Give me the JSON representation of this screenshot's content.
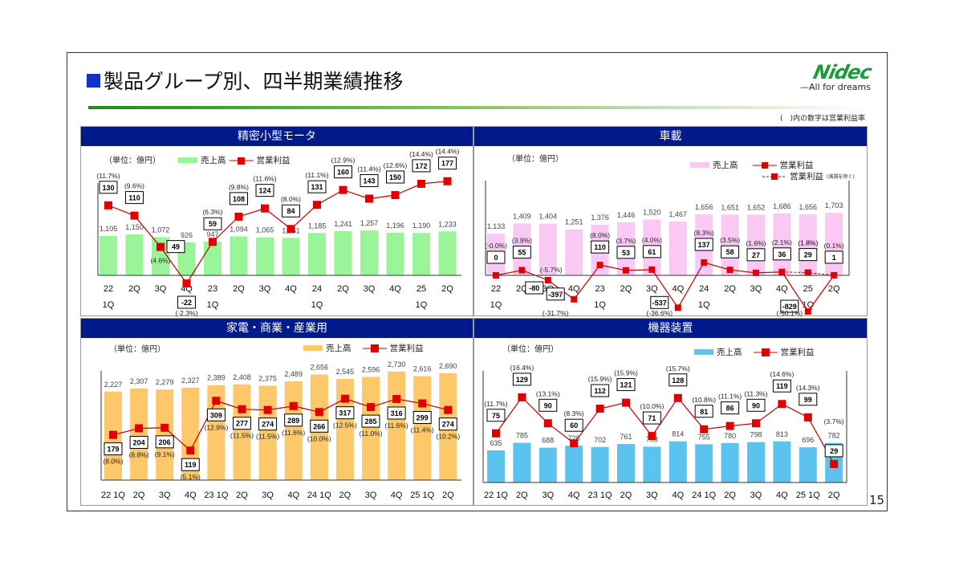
{
  "header": {
    "title": "製品グループ別、四半期業績推移",
    "logo_text": "Nidec",
    "logo_tagline": "All for dreams",
    "note": "(　)内の数字は営業利益率",
    "page_number": "15"
  },
  "colors": {
    "header_bg": "#001a8c",
    "profit": "#e00000",
    "precision_bar": "#99f598",
    "auto_bar": "#f9c8f3",
    "appliance_bar": "#fdc86a",
    "machinery_bar": "#5cc3ee"
  },
  "chart_data": [
    {
      "type": "bar+line",
      "title": "精密小型モータ",
      "unit": "（単位：億円）",
      "legend": [
        "売上高",
        "営業利益"
      ],
      "categories": [
        [
          "22",
          "1Q"
        ],
        [
          "2Q",
          ""
        ],
        [
          "3Q",
          ""
        ],
        [
          "4Q",
          ""
        ],
        [
          "23",
          "1Q"
        ],
        [
          "2Q",
          ""
        ],
        [
          "3Q",
          ""
        ],
        [
          "4Q",
          ""
        ],
        [
          "24",
          "1Q"
        ],
        [
          "2Q",
          ""
        ],
        [
          "3Q",
          ""
        ],
        [
          "4Q",
          ""
        ],
        [
          "25",
          "1Q"
        ],
        [
          "2Q",
          ""
        ]
      ],
      "sales": [
        1105,
        1150,
        1072,
        926,
        947,
        1094,
        1065,
        1051,
        1185,
        1241,
        1257,
        1196,
        1190,
        1233
      ],
      "sales_labels": [
        "1,105",
        "1,150",
        "1,072",
        "926",
        "947",
        "1,094",
        "1,065",
        "1,051",
        "1,185",
        "1,241",
        "1,257",
        "1,196",
        "1,190",
        "1,233"
      ],
      "profit": [
        130,
        110,
        49,
        -22,
        59,
        108,
        124,
        84,
        131,
        160,
        143,
        150,
        172,
        177
      ],
      "margin": [
        "(11.7%)",
        "(9.6%)",
        "(4.6%)",
        "(-2.3%)",
        "(6.3%)",
        "(9.8%)",
        "(11.6%)",
        "(8.0%)",
        "(11.1%)",
        "(12.9%)",
        "(11.4%)",
        "(12.6%)",
        "(14.4%)",
        "(14.4%)"
      ]
    },
    {
      "type": "bar+line",
      "title": "車載",
      "unit": "（単位：億円）",
      "legend": [
        "売上高",
        "営業利益",
        "営業利益",
        "(減損を除く)"
      ],
      "categories": [
        [
          "22",
          "1Q"
        ],
        [
          "2Q",
          ""
        ],
        [
          "3Q",
          ""
        ],
        [
          "4Q",
          ""
        ],
        [
          "23",
          "1Q"
        ],
        [
          "2Q",
          ""
        ],
        [
          "3Q",
          ""
        ],
        [
          "4Q",
          ""
        ],
        [
          "24",
          "1Q"
        ],
        [
          "2Q",
          ""
        ],
        [
          "3Q",
          ""
        ],
        [
          "4Q",
          ""
        ],
        [
          "25",
          "1Q"
        ],
        [
          "2Q",
          ""
        ]
      ],
      "sales": [
        1133,
        1409,
        1404,
        1251,
        1376,
        1446,
        1520,
        1467,
        1656,
        1651,
        1652,
        1686,
        1656,
        1703
      ],
      "sales_labels": [
        "1,133",
        "1,409",
        "1,404",
        "1,251",
        "1,376",
        "1,446",
        "1,520",
        "1,467",
        "1,656",
        "1,651",
        "1,652",
        "1,686",
        "1,656",
        "1,703"
      ],
      "profit": [
        0,
        55,
        -80,
        -397,
        110,
        53,
        61,
        -537,
        137,
        58,
        27,
        36,
        -829,
        1
      ],
      "margin": [
        "(-0.0%)",
        "(3.9%)",
        "(-5.7%)",
        "(-31.7%)",
        "(8.0%)",
        "(3.7%)",
        "(4.0%)",
        "(-36.6%)",
        "(8.3%)",
        "(3.5%)",
        "(1.6%)",
        "(2.1%)",
        "(-50.1%)",
        "(0.1%)"
      ],
      "profit_excl": {
        "indices": [
          11,
          12,
          13
        ],
        "values": [
          36,
          29,
          1
        ],
        "margin_25_1Q": "(1.8%)"
      }
    },
    {
      "type": "bar+line",
      "title": "家電・商業・産業用",
      "unit": "（単位：億円）",
      "legend": [
        "売上高",
        "営業利益"
      ],
      "categories": [
        [
          "22 1Q"
        ],
        [
          "2Q"
        ],
        [
          "3Q"
        ],
        [
          "4Q"
        ],
        [
          "23 1Q"
        ],
        [
          "2Q"
        ],
        [
          "3Q"
        ],
        [
          "4Q"
        ],
        [
          "24 1Q"
        ],
        [
          "2Q"
        ],
        [
          "3Q"
        ],
        [
          "4Q"
        ],
        [
          "25 1Q"
        ],
        [
          "2Q"
        ]
      ],
      "sales": [
        2227,
        2307,
        2279,
        2327,
        2389,
        2408,
        2375,
        2489,
        2656,
        2545,
        2596,
        2730,
        2616,
        2690
      ],
      "sales_labels": [
        "2,227",
        "2,307",
        "2,279",
        "2,327",
        "2,389",
        "2,408",
        "2,375",
        "2,489",
        "2,656",
        "2,545",
        "2,596",
        "2,730",
        "2,616",
        "2,690"
      ],
      "profit": [
        179,
        204,
        206,
        119,
        309,
        277,
        274,
        289,
        266,
        317,
        285,
        316,
        299,
        274
      ],
      "margin": [
        "(8.0%)",
        "(8.8%)",
        "(9.1%)",
        "(5.1%)",
        "(12.9%)",
        "(11.5%)",
        "(11.5%)",
        "(11.6%)",
        "(10.0%)",
        "(12.5%)",
        "(11.0%)",
        "(11.6%)",
        "(11.4%)",
        "(10.2%)"
      ]
    },
    {
      "type": "bar+line",
      "title": "機器装置",
      "unit": "（単位：億円）",
      "legend": [
        "売上高",
        "営業利益"
      ],
      "categories": [
        [
          "22 1Q"
        ],
        [
          "2Q"
        ],
        [
          "3Q"
        ],
        [
          "4Q"
        ],
        [
          "23 1Q"
        ],
        [
          "2Q"
        ],
        [
          "3Q"
        ],
        [
          "4Q"
        ],
        [
          "24 1Q"
        ],
        [
          "2Q"
        ],
        [
          "3Q"
        ],
        [
          "4Q"
        ],
        [
          "25 1Q"
        ],
        [
          "2Q"
        ]
      ],
      "sales": [
        635,
        785,
        688,
        728,
        702,
        761,
        708,
        814,
        755,
        780,
        798,
        813,
        696,
        782
      ],
      "sales_labels": [
        "635",
        "785",
        "688",
        "728",
        "702",
        "761",
        "708",
        "814",
        "755",
        "780",
        "798",
        "813",
        "696",
        "782"
      ],
      "profit": [
        75,
        129,
        90,
        60,
        112,
        121,
        71,
        128,
        81,
        86,
        90,
        119,
        99,
        29
      ],
      "margin": [
        "(11.7%)",
        "(16.4%)",
        "(13.1%)",
        "(8.3%)",
        "(15.9%)",
        "(15.9%)",
        "(10.0%)",
        "(15.7%)",
        "(10.8%)",
        "(11.1%)",
        "(11.3%)",
        "(14.6%)",
        "(14.3%)",
        "(3.7%)"
      ]
    }
  ]
}
